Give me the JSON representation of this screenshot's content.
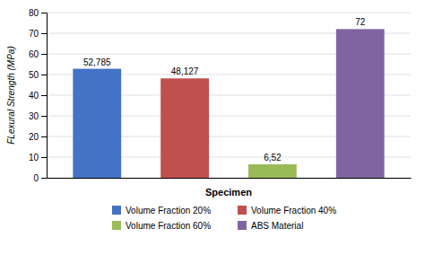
{
  "chart_data": {
    "type": "bar",
    "categories": [
      "Volume Fraction 20%",
      "Volume Fraction 40%",
      "Volume Fraction 60%",
      "ABS Material"
    ],
    "values": [
      52.785,
      48.127,
      6.52,
      72
    ],
    "value_labels": [
      "52,785",
      "48,127",
      "6,52",
      "72"
    ],
    "data_labels": true,
    "colors": [
      "#4472C4",
      "#C0504D",
      "#9BBB59",
      "#8064A2"
    ],
    "xlabel": "Specimen",
    "ylabel": "FLexural Strength (MPa)",
    "ylim": [
      0,
      80
    ],
    "yticks": [
      0,
      10,
      20,
      30,
      40,
      50,
      60,
      70,
      80
    ],
    "grid": true,
    "tick_labels": "y",
    "legend": "bottom"
  }
}
